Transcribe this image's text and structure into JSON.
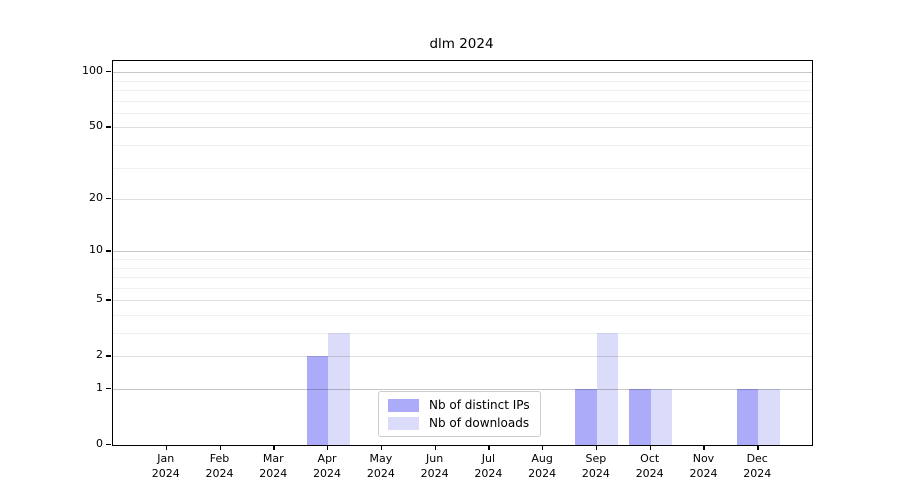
{
  "title": "dlm 2024",
  "legend": {
    "items": [
      {
        "label": "Nb of distinct IPs",
        "color": "#ababfa"
      },
      {
        "label": "Nb of downloads",
        "color": "#dbdbfa"
      }
    ]
  },
  "chart_data": {
    "type": "bar",
    "title": "dlm 2024",
    "months": [
      "Jan",
      "Feb",
      "Mar",
      "Apr",
      "May",
      "Jun",
      "Jul",
      "Aug",
      "Sep",
      "Oct",
      "Nov",
      "Dec"
    ],
    "year": "2024",
    "categories": [
      "Jan 2024",
      "Feb 2024",
      "Mar 2024",
      "Apr 2024",
      "May 2024",
      "Jun 2024",
      "Jul 2024",
      "Aug 2024",
      "Sep 2024",
      "Oct 2024",
      "Nov 2024",
      "Dec 2024"
    ],
    "series": [
      {
        "name": "Nb of distinct IPs",
        "color": "#ababfa",
        "values": [
          0,
          0,
          0,
          2,
          0,
          0,
          0,
          0,
          1,
          1,
          0,
          1
        ]
      },
      {
        "name": "Nb of downloads",
        "color": "#dbdbfa",
        "values": [
          0,
          0,
          0,
          3,
          0,
          0,
          0,
          0,
          3,
          1,
          0,
          1
        ]
      }
    ],
    "yscale": "log1p",
    "yticks": [
      0,
      1,
      2,
      5,
      10,
      20,
      50,
      100
    ],
    "grid_major": [
      1,
      10,
      100
    ],
    "grid_mid": [
      2,
      5,
      20,
      50
    ],
    "grid_minor": [
      3,
      4,
      6,
      7,
      8,
      9,
      30,
      40,
      60,
      70,
      80,
      90
    ],
    "ylim": [
      0,
      115
    ],
    "grid": true,
    "legend_position": "lower center inside"
  }
}
